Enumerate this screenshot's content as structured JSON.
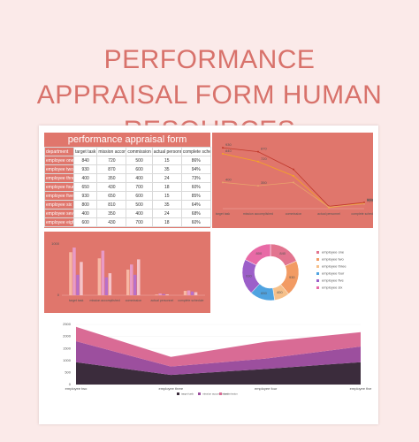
{
  "header": {
    "title": "PERFORMANCE APPRAISAL FORM HUMAN RESOURCES"
  },
  "table": {
    "title": "performance appraisal form",
    "columns": [
      "department",
      "target task",
      "mission accomplished",
      "commission",
      "actual personnel",
      "complete schedule"
    ],
    "rows": [
      [
        "employee one",
        840,
        720,
        500,
        15,
        "86%"
      ],
      [
        "employee two",
        930,
        870,
        600,
        35,
        "94%"
      ],
      [
        "employee three",
        400,
        350,
        400,
        24,
        "73%"
      ],
      [
        "employee four",
        650,
        430,
        700,
        18,
        "60%"
      ],
      [
        "employee five",
        930,
        650,
        600,
        15,
        "85%"
      ],
      [
        "employee six",
        800,
        810,
        500,
        35,
        "64%"
      ],
      [
        "employee seven",
        400,
        350,
        400,
        24,
        "68%"
      ],
      [
        "employee eight",
        600,
        430,
        700,
        18,
        "60%"
      ]
    ]
  },
  "bar_chart": {
    "ylim": [
      0,
      1000
    ],
    "yticks": [
      0,
      1000
    ]
  },
  "line_chart": {
    "ylim": [
      0,
      1000
    ]
  },
  "area_chart": {
    "ylim": [
      0,
      2500
    ],
    "yticks": [
      0,
      500,
      1000,
      1500,
      2000,
      2500
    ]
  }
}
